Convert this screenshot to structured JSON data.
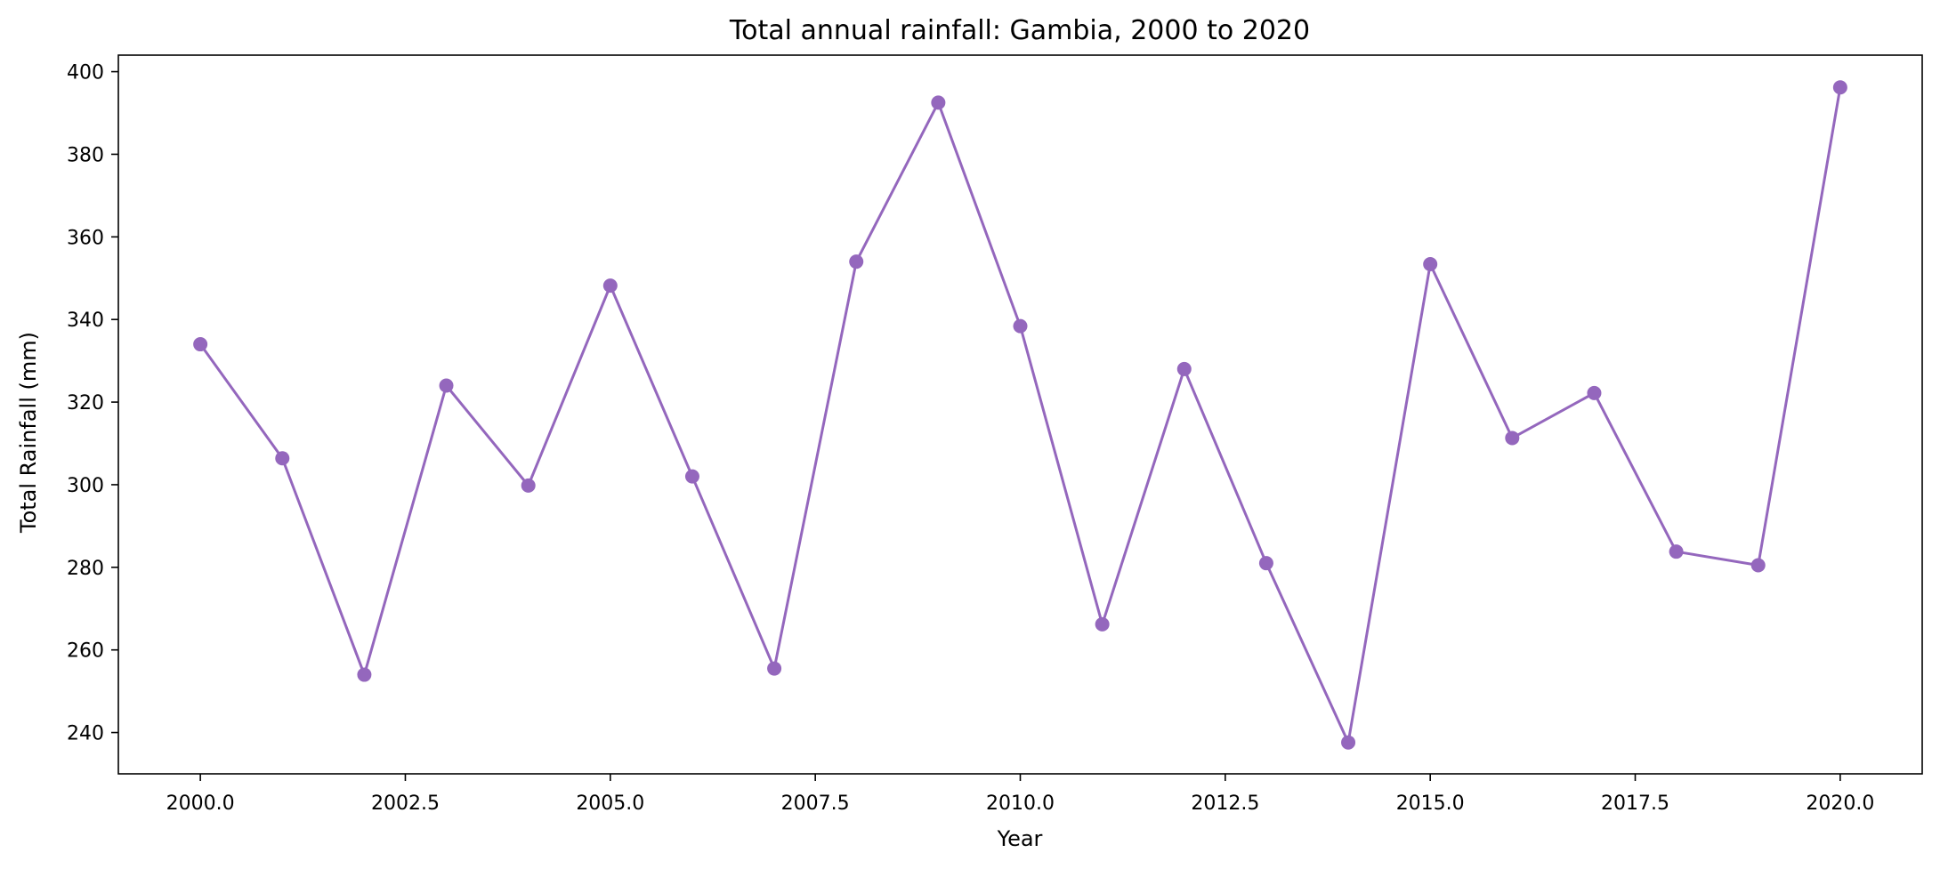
{
  "chart_data": {
    "type": "line",
    "title": "Total annual rainfall: Gambia, 2000 to 2020",
    "xlabel": "Year",
    "ylabel": "Total Rainfall (mm)",
    "xlim": [
      1999,
      2021
    ],
    "ylim": [
      230,
      404
    ],
    "x_ticks": [
      2000.0,
      2002.5,
      2005.0,
      2007.5,
      2010.0,
      2012.5,
      2015.0,
      2017.5,
      2020.0
    ],
    "x_tick_labels": [
      "2000.0",
      "2002.5",
      "2005.0",
      "2007.5",
      "2010.0",
      "2012.5",
      "2015.0",
      "2017.5",
      "2020.0"
    ],
    "y_ticks": [
      240,
      260,
      280,
      300,
      320,
      340,
      360,
      380,
      400
    ],
    "y_tick_labels": [
      "240",
      "260",
      "280",
      "300",
      "320",
      "340",
      "360",
      "380",
      "400"
    ],
    "grid": false,
    "legend": "none",
    "colors": {
      "series": "#9467bd",
      "axes": "#000000"
    },
    "series": [
      {
        "x": [
          2000,
          2001,
          2002,
          2003,
          2004,
          2005,
          2006,
          2007,
          2008,
          2009,
          2010,
          2011,
          2012,
          2013,
          2014,
          2015,
          2016,
          2017,
          2018,
          2019,
          2020
        ],
        "values": [
          334.0,
          306.4,
          254.0,
          324.0,
          299.8,
          348.2,
          302.0,
          255.5,
          354.0,
          392.5,
          338.4,
          266.2,
          328.0,
          281.0,
          237.6,
          353.4,
          311.3,
          322.2,
          283.8,
          280.5,
          396.2
        ]
      }
    ]
  }
}
